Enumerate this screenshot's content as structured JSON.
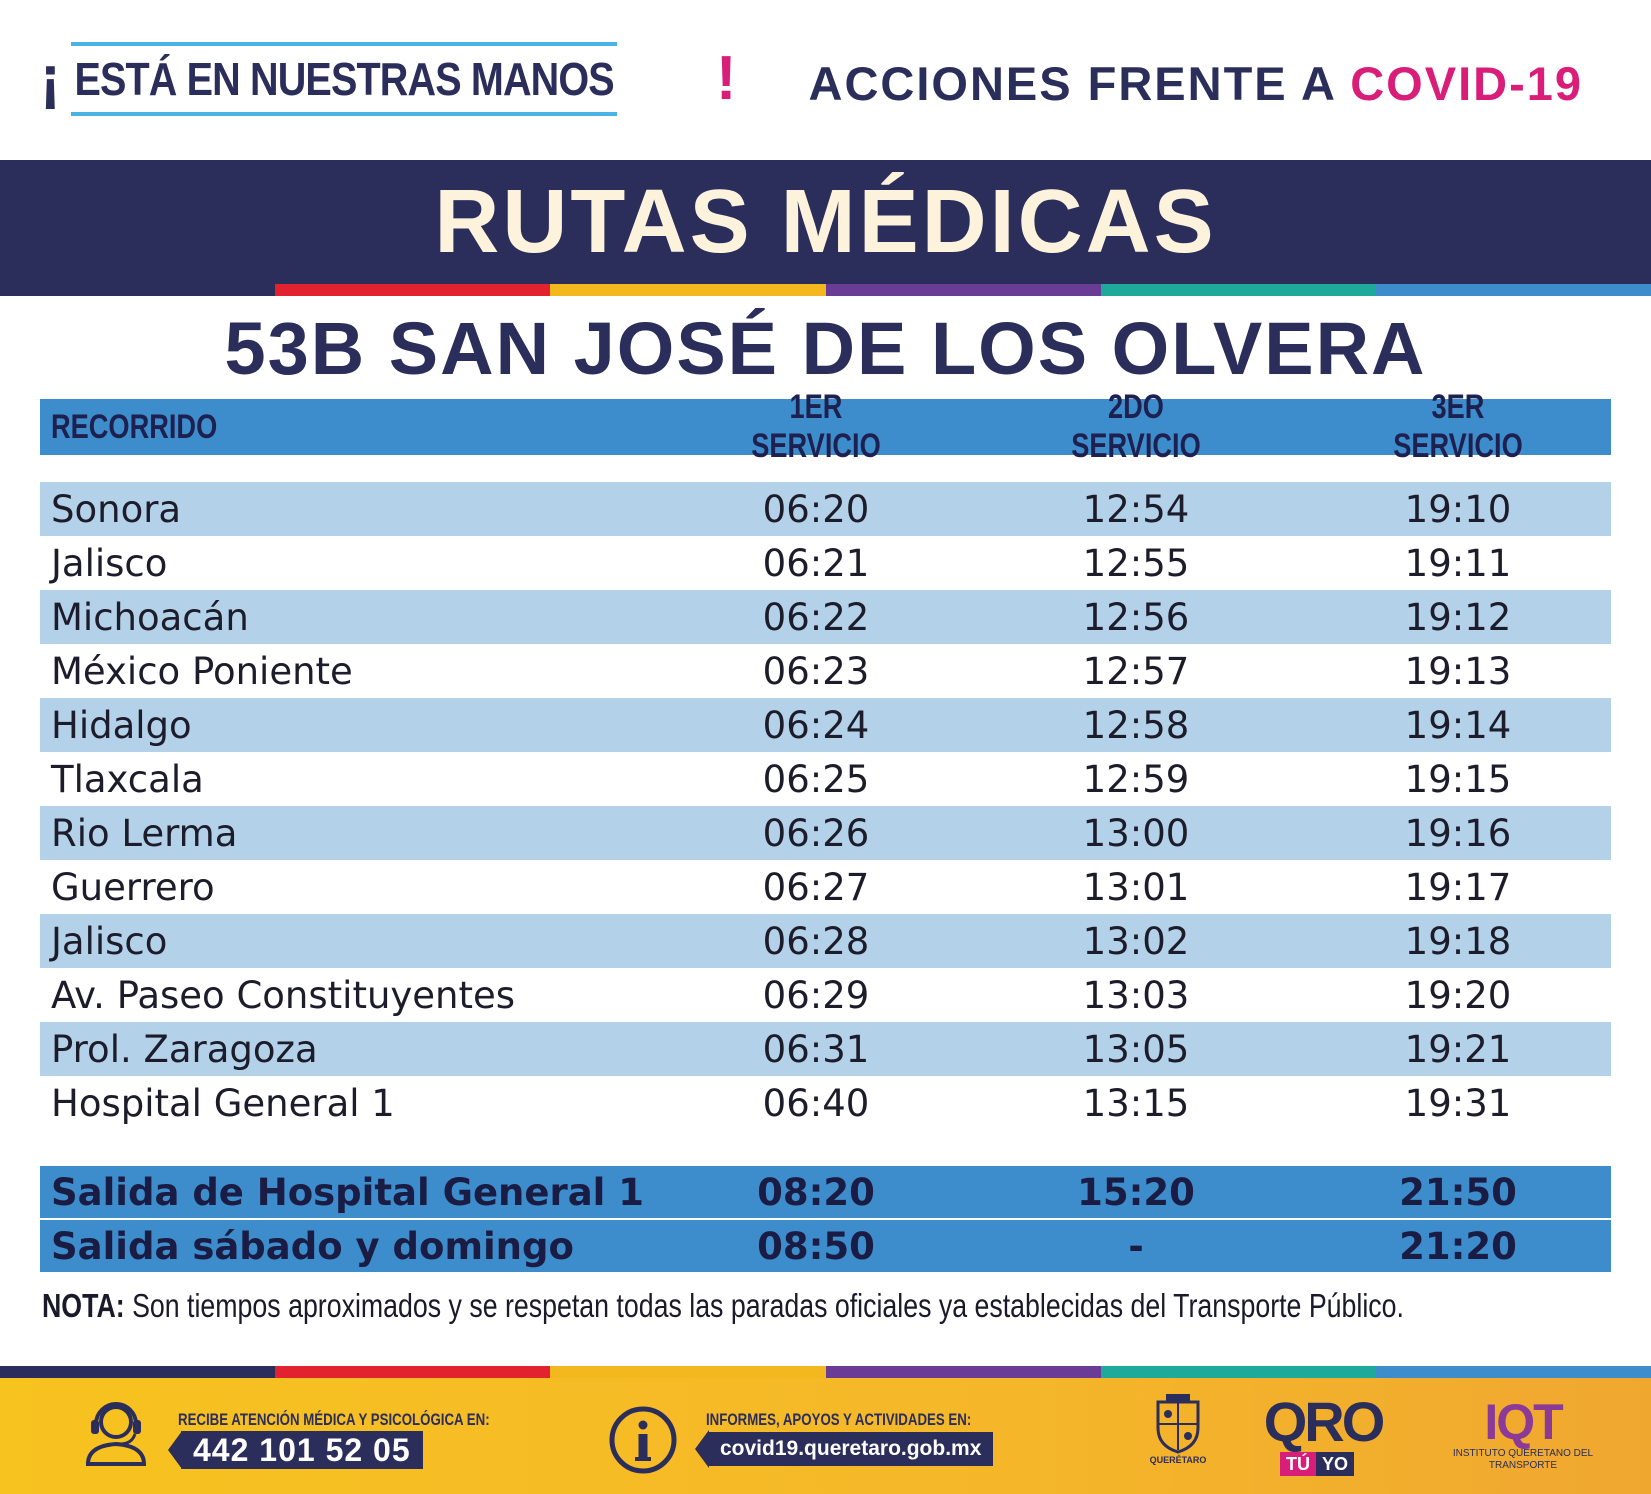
{
  "header": {
    "slogan_open": "¡",
    "slogan": "ESTÁ EN NUESTRAS MANOS",
    "slogan_close": "!",
    "actions_prefix": "ACCIONES FRENTE A ",
    "actions_accent": "COVID-19"
  },
  "title": "RUTAS MÉDICAS",
  "route": "53B SAN JOSÉ DE LOS OLVERA",
  "table": {
    "headers": [
      "RECORRIDO",
      "1ER SERVICIO",
      "2DO SERVICIO",
      "3ER SERVICIO"
    ],
    "rows": [
      [
        "Sonora",
        "06:20",
        "12:54",
        "19:10"
      ],
      [
        "Jalisco",
        "06:21",
        "12:55",
        "19:11"
      ],
      [
        "Michoacán",
        "06:22",
        "12:56",
        "19:12"
      ],
      [
        "México Poniente",
        "06:23",
        "12:57",
        "19:13"
      ],
      [
        "Hidalgo",
        "06:24",
        "12:58",
        "19:14"
      ],
      [
        "Tlaxcala",
        "06:25",
        "12:59",
        "19:15"
      ],
      [
        "Rio Lerma",
        "06:26",
        "13:00",
        "19:16"
      ],
      [
        "Guerrero",
        "06:27",
        "13:01",
        "19:17"
      ],
      [
        "Jalisco",
        "06:28",
        "13:02",
        "19:18"
      ],
      [
        "Av. Paseo Constituyentes",
        "06:29",
        "13:03",
        "19:20"
      ],
      [
        "Prol. Zaragoza",
        "06:31",
        "13:05",
        "19:21"
      ],
      [
        "Hospital General 1",
        "06:40",
        "13:15",
        "19:31"
      ]
    ],
    "exits": [
      [
        "Salida de Hospital General 1",
        "08:20",
        "15:20",
        "21:50"
      ],
      [
        "Salida sábado y domingo",
        "08:50",
        "-",
        "21:20"
      ]
    ]
  },
  "note": {
    "label": "NOTA:",
    "text": " Son tiempos aproximados y se respetan todas las paradas oficiales ya establecidas del Transporte Público."
  },
  "footer": {
    "phone_label": "RECIBE ATENCIÓN MÉDICA Y PSICOLÓGICA EN:",
    "phone": "442 101 52 05",
    "info_label": "INFORMES, APOYOS Y ACTIVIDADES EN:",
    "website": "covid19.queretaro.gob.mx",
    "seal_caption": "QUERÉTARO",
    "qro_word": "QRO",
    "qro_tu": "TÚ",
    "qro_yo": "YO",
    "iqt_word": "IQT",
    "iqt_caption": "INSTITUTO QUERETANO DEL TRANSPORTE",
    "icons": [
      "headset-icon",
      "info-icon",
      "state-seal-icon",
      "qro-logo",
      "iqt-logo"
    ]
  },
  "colors": {
    "navy": "#2b2d5a",
    "magenta": "#d91e7a",
    "table_blue": "#3d8ccb",
    "row_light": "#b4d1ea",
    "footer_yellow": "#f7c31f",
    "stripe": [
      "#2b2d5a",
      "#e2222f",
      "#f4b81f",
      "#6b3c96",
      "#1fa99a",
      "#3d8ccb"
    ]
  }
}
